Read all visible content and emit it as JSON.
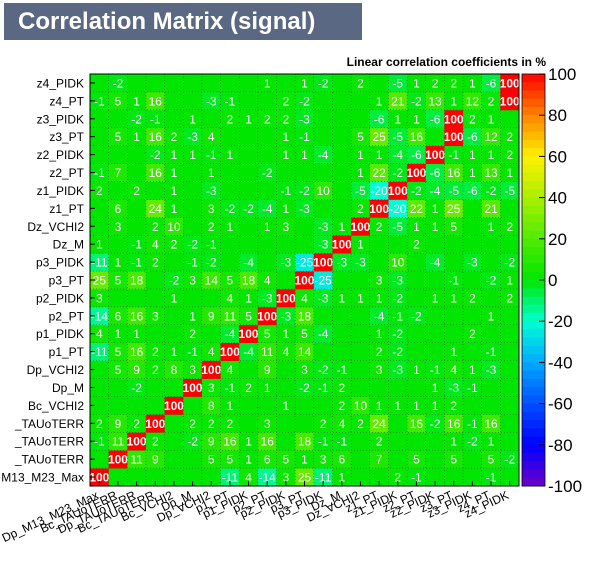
{
  "title": "Correlation Matrix (signal)",
  "subtitle": "Linear correlation coefficients in %",
  "chart_data": {
    "type": "heatmap",
    "variables": [
      "Dp_M13_M23_Max",
      "Bc_TAUoTERR",
      "Dp_TAUoTERR",
      "Bc_TAUoTERR",
      "Bc_VCHI2",
      "Dp_M",
      "Dp_VCHI2",
      "p1_PT",
      "p1_PIDK",
      "p2_PT",
      "p2_PIDK",
      "p3_PT",
      "p3_PIDK",
      "Dz_M",
      "Dz_VCHI2",
      "z1_PT",
      "z1_PIDK",
      "z2_PT",
      "z2_PIDK",
      "z3_PT",
      "z3_PIDK",
      "z4_PT",
      "z4_PIDK"
    ],
    "y_labels": [
      "M13_M23_Max",
      "_TAUoTERR",
      "_TAUoTERR",
      "_TAUoTERR",
      "Bc_VCHI2",
      "Dp_M",
      "Dp_VCHI2",
      "p1_PT",
      "p1_PIDK",
      "p2_PT",
      "p2_PIDK",
      "p3_PT",
      "p3_PIDK",
      "Dz_M",
      "Dz_VCHI2",
      "z1_PT",
      "z1_PIDK",
      "z2_PT",
      "z2_PIDK",
      "z3_PT",
      "z3_PIDK",
      "z4_PT",
      "z4_PIDK"
    ],
    "matrix": [
      [
        100,
        0,
        0,
        0,
        0,
        0,
        0,
        -11,
        4,
        -14,
        3,
        25,
        -11,
        1,
        0,
        0,
        2,
        -1,
        0,
        0,
        0,
        -1,
        0
      ],
      [
        0,
        100,
        11,
        9,
        0,
        0,
        5,
        5,
        1,
        6,
        5,
        1,
        3,
        6,
        0,
        7,
        0,
        5,
        0,
        5,
        0,
        5,
        -2
      ],
      [
        -1,
        11,
        100,
        2,
        0,
        -2,
        9,
        16,
        1,
        16,
        0,
        18,
        -1,
        -1,
        0,
        2,
        0,
        0,
        0,
        1,
        -2,
        1,
        0
      ],
      [
        2,
        9,
        2,
        100,
        0,
        2,
        2,
        2,
        0,
        3,
        0,
        0,
        2,
        4,
        2,
        24,
        0,
        16,
        -2,
        16,
        -1,
        16,
        0
      ],
      [
        0,
        0,
        0,
        0,
        100,
        0,
        8,
        1,
        0,
        0,
        1,
        0,
        0,
        2,
        10,
        1,
        1,
        1,
        1,
        2,
        0,
        0,
        0
      ],
      [
        0,
        0,
        -2,
        0,
        0,
        100,
        3,
        -1,
        2,
        1,
        0,
        -2,
        -1,
        2,
        0,
        0,
        0,
        0,
        1,
        -3,
        -1,
        0,
        0
      ],
      [
        0,
        5,
        9,
        2,
        8,
        3,
        100,
        4,
        0,
        9,
        0,
        3,
        -2,
        -1,
        0,
        3,
        -3,
        1,
        -1,
        4,
        1,
        -3,
        0
      ],
      [
        -11,
        5,
        16,
        2,
        1,
        -1,
        4,
        100,
        -4,
        11,
        4,
        14,
        0,
        0,
        0,
        2,
        -2,
        0,
        0,
        1,
        0,
        -1,
        0
      ],
      [
        4,
        1,
        1,
        0,
        0,
        2,
        0,
        -4,
        100,
        5,
        1,
        5,
        -4,
        0,
        0,
        1,
        -2,
        0,
        0,
        0,
        2,
        0,
        0
      ],
      [
        -14,
        6,
        16,
        3,
        0,
        1,
        9,
        11,
        5,
        100,
        -3,
        18,
        0,
        0,
        0,
        -4,
        -1,
        -2,
        0,
        0,
        0,
        1,
        0
      ],
      [
        3,
        0,
        0,
        0,
        1,
        0,
        0,
        4,
        1,
        -3,
        100,
        4,
        -3,
        1,
        1,
        1,
        -2,
        0,
        1,
        1,
        2,
        0,
        2
      ],
      [
        25,
        5,
        18,
        0,
        -2,
        3,
        14,
        5,
        18,
        4,
        0,
        100,
        -25,
        0,
        0,
        3,
        -3,
        0,
        0,
        -1,
        0,
        -2,
        1
      ],
      [
        -11,
        1,
        -1,
        2,
        0,
        -1,
        -2,
        0,
        -4,
        0,
        -3,
        -25,
        100,
        -3,
        -3,
        0,
        10,
        0,
        -4,
        0,
        -3,
        0,
        -2
      ],
      [
        1,
        0,
        -1,
        4,
        2,
        -2,
        -1,
        0,
        0,
        0,
        0,
        0,
        -3,
        100,
        1,
        0,
        0,
        2,
        0,
        0,
        0,
        0,
        0
      ],
      [
        0,
        3,
        0,
        2,
        10,
        0,
        2,
        1,
        0,
        1,
        3,
        0,
        -3,
        1,
        100,
        2,
        -5,
        1,
        1,
        5,
        0,
        1,
        2
      ],
      [
        0,
        6,
        0,
        24,
        1,
        0,
        3,
        -2,
        -2,
        -4,
        1,
        -3,
        0,
        0,
        2,
        100,
        -20,
        22,
        1,
        25,
        0,
        21,
        0
      ],
      [
        2,
        0,
        2,
        0,
        1,
        0,
        -3,
        0,
        0,
        0,
        -1,
        -2,
        10,
        0,
        -5,
        -20,
        100,
        -2,
        -4,
        -5,
        -6,
        -2,
        -5
      ],
      [
        -1,
        7,
        0,
        16,
        1,
        0,
        1,
        0,
        0,
        -2,
        0,
        0,
        0,
        0,
        1,
        22,
        -2,
        100,
        -6,
        16,
        1,
        13,
        1
      ],
      [
        0,
        0,
        0,
        -2,
        1,
        1,
        -1,
        1,
        0,
        0,
        1,
        1,
        -4,
        0,
        1,
        1,
        -4,
        -6,
        100,
        -1,
        1,
        1,
        2
      ],
      [
        0,
        5,
        1,
        16,
        2,
        -3,
        4,
        0,
        0,
        0,
        1,
        -1,
        0,
        0,
        5,
        25,
        -5,
        16,
        0,
        100,
        -6,
        12,
        2
      ],
      [
        0,
        0,
        -2,
        -1,
        0,
        1,
        0,
        2,
        1,
        2,
        2,
        -3,
        0,
        0,
        0,
        -6,
        1,
        1,
        -6,
        100,
        2,
        1,
        0
      ],
      [
        -1,
        5,
        1,
        16,
        0,
        0,
        -3,
        -1,
        0,
        0,
        2,
        -2,
        0,
        0,
        0,
        1,
        21,
        -2,
        13,
        1,
        12,
        2,
        100
      ],
      [
        0,
        -2,
        0,
        0,
        0,
        0,
        0,
        0,
        0,
        1,
        0,
        1,
        -2,
        0,
        2,
        0,
        -5,
        1,
        2,
        2,
        1,
        -6,
        100
      ]
    ],
    "zlim": [
      -100,
      100
    ],
    "z_ticks": [
      100,
      80,
      60,
      40,
      20,
      0,
      -20,
      -40,
      -60,
      -80,
      -100
    ],
    "grid": true
  }
}
